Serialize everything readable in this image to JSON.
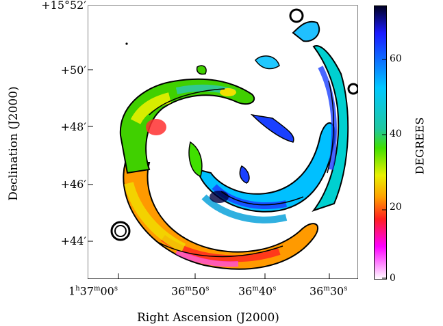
{
  "figure": {
    "x_axis_title": "Right Ascension (J2000)",
    "y_axis_title": "Declination (J2000)",
    "x_ticks": [
      {
        "h": "1",
        "hu": "h",
        "m": "37",
        "mu": "m",
        "s": "00",
        "su": "s"
      },
      {
        "m": "36",
        "mu": "m",
        "s": "50",
        "su": "s"
      },
      {
        "m": "36",
        "mu": "m",
        "s": "40",
        "su": "s"
      },
      {
        "m": "36",
        "mu": "m",
        "s": "30",
        "su": "s"
      }
    ],
    "y_ticks": [
      "+15°52′",
      "+50′",
      "+48′",
      "+46′",
      "+44′"
    ],
    "colorbar": {
      "title": "DEGREES",
      "ticks": [
        "60",
        "40",
        "20",
        "0"
      ],
      "range": [
        0,
        73
      ],
      "colors": [
        "#000020",
        "#1a1aff",
        "#00c8ff",
        "#20c8a0",
        "#40e000",
        "#e8f000",
        "#ffa000",
        "#ff2020",
        "#ff00ff",
        "#ffffff"
      ]
    },
    "image_description": "spiral galaxy map with contours"
  }
}
